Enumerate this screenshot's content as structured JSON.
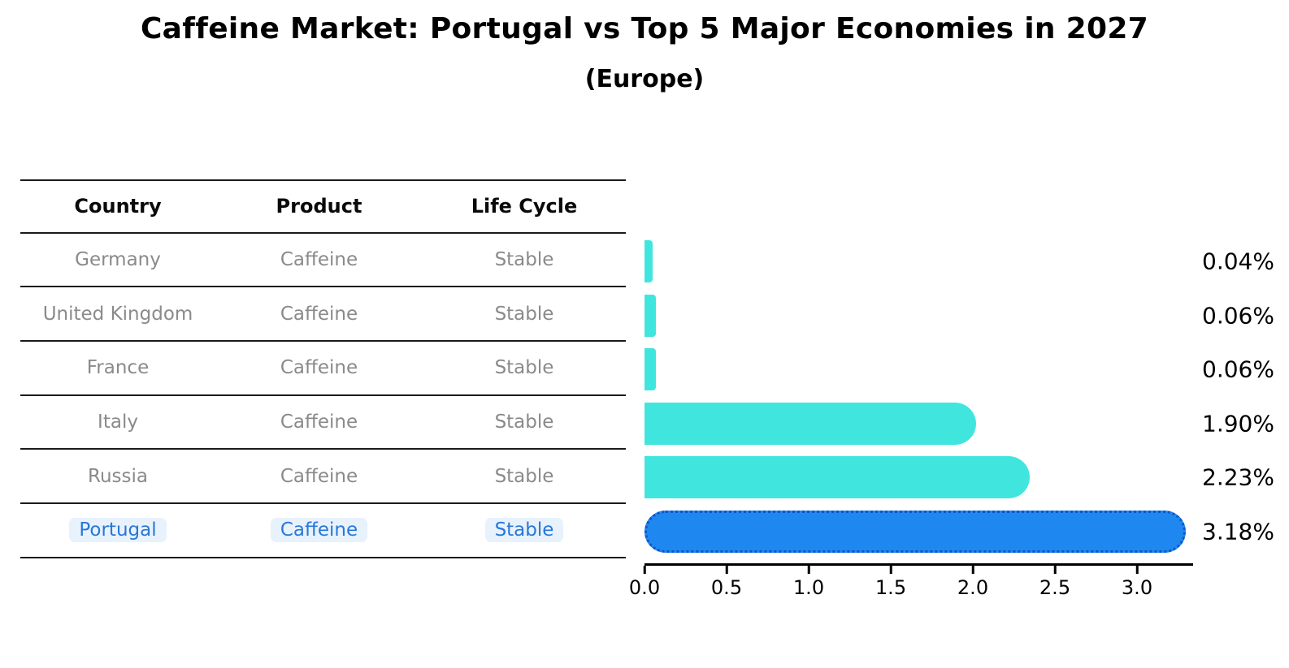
{
  "title": "Caffeine Market: Portugal vs Top 5 Major Economies in 2027",
  "subtitle": "(Europe)",
  "table": {
    "headers": [
      "Country",
      "Product",
      "Life Cycle"
    ],
    "rows": [
      {
        "country": "Germany",
        "product": "Caffeine",
        "life_cycle": "Stable",
        "highlighted": false
      },
      {
        "country": "United Kingdom",
        "product": "Caffeine",
        "life_cycle": "Stable",
        "highlighted": false
      },
      {
        "country": "France",
        "product": "Caffeine",
        "life_cycle": "Stable",
        "highlighted": false
      },
      {
        "country": "Italy",
        "product": "Caffeine",
        "life_cycle": "Stable",
        "highlighted": false
      },
      {
        "country": "Russia",
        "product": "Caffeine",
        "life_cycle": "Stable",
        "highlighted": false
      },
      {
        "country": "Portugal",
        "product": "Caffeine",
        "life_cycle": "Stable",
        "highlighted": true
      }
    ]
  },
  "chart_data": {
    "type": "bar",
    "orientation": "horizontal",
    "title": "Caffeine Market: Portugal vs Top 5 Major Economies in 2027",
    "subtitle": "(Europe)",
    "categories": [
      "Germany",
      "United Kingdom",
      "France",
      "Italy",
      "Russia",
      "Portugal"
    ],
    "values": [
      0.04,
      0.06,
      0.06,
      1.9,
      2.23,
      3.18
    ],
    "bar_labels": [
      "0.04%",
      "0.06%",
      "0.06%",
      "1.90%",
      "2.23%",
      "3.18%"
    ],
    "highlight_index": 5,
    "x_ticks": [
      0.0,
      0.5,
      1.0,
      1.5,
      2.0,
      2.5,
      3.0
    ],
    "x_tick_labels": [
      "0.0",
      "0.5",
      "1.0",
      "1.5",
      "2.0",
      "2.5",
      "3.0"
    ],
    "xlim": [
      0,
      3.34
    ],
    "grid": false,
    "legend": null
  },
  "colors": {
    "bar": "#40E6DE",
    "highlight_bar": "#1E88F0",
    "highlight_bar_edge": "#0F55C8",
    "row_text": "#8A8A8A",
    "highlight_text": "#2878D8",
    "highlight_text_bg": "#E8F2FD",
    "rule": "#1A1A1A",
    "label_text": "#000000"
  }
}
